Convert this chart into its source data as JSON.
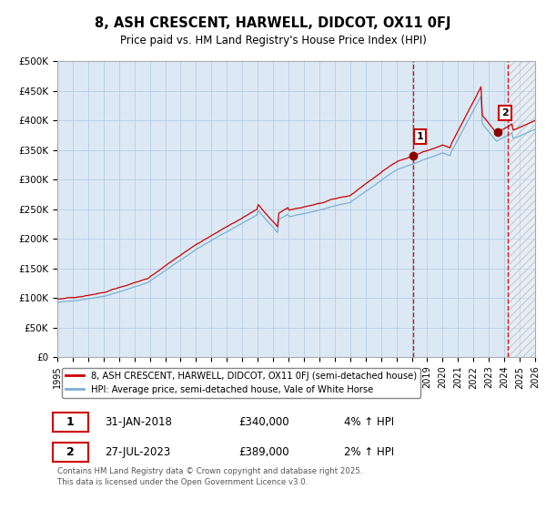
{
  "title": "8, ASH CRESCENT, HARWELL, DIDCOT, OX11 0FJ",
  "subtitle": "Price paid vs. HM Land Registry's House Price Index (HPI)",
  "legend_label_red": "8, ASH CRESCENT, HARWELL, DIDCOT, OX11 0FJ (semi-detached house)",
  "legend_label_blue": "HPI: Average price, semi-detached house, Vale of White Horse",
  "annotation1_date": "31-JAN-2018",
  "annotation1_price": "£340,000",
  "annotation1_hpi": "4% ↑ HPI",
  "annotation2_date": "27-JUL-2023",
  "annotation2_price": "£389,000",
  "annotation2_hpi": "2% ↑ HPI",
  "footer": "Contains HM Land Registry data © Crown copyright and database right 2025.\nThis data is licensed under the Open Government Licence v3.0.",
  "ylim": [
    0,
    500000
  ],
  "yticks": [
    0,
    50000,
    100000,
    150000,
    200000,
    250000,
    300000,
    350000,
    400000,
    450000,
    500000
  ],
  "red_color": "#cc0000",
  "blue_color": "#7ab0d4",
  "bg_color": "#dce9f5",
  "grid_color": "#b0c8e0",
  "vline_color": "#cc0000",
  "annotation_marker_color": "#8b0000",
  "x_start_year": 1995,
  "x_end_year": 2026,
  "anno1_year": 2018.08,
  "anno2_year": 2023.58,
  "vline2_year": 2024.2,
  "base_price_1995": 70000,
  "seed": 42
}
